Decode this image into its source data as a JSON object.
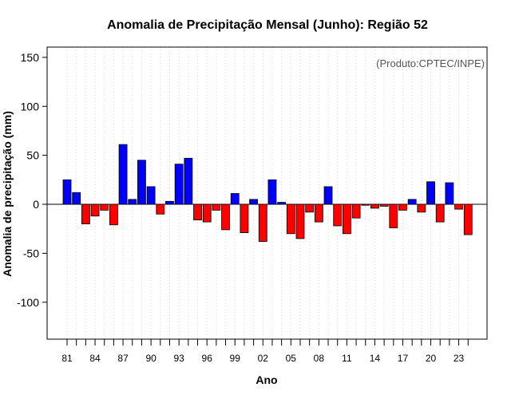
{
  "chart_data": {
    "type": "bar",
    "title": "Anomalia de Precipitação Mensal (Junho): Região 52",
    "xlabel": "Ano",
    "ylabel": "Anomalia de precipitação (mm)",
    "credit": "(Produto:CPTEC/INPE)",
    "ylim": [
      -140,
      160
    ],
    "yticks": [
      -100,
      -50,
      0,
      50,
      100,
      150
    ],
    "xtick_labels": [
      "81",
      "84",
      "87",
      "90",
      "93",
      "96",
      "99",
      "02",
      "05",
      "08",
      "11",
      "14",
      "17",
      "20",
      "23"
    ],
    "categories": [
      "1981",
      "1982",
      "1983",
      "1984",
      "1985",
      "1986",
      "1987",
      "1988",
      "1989",
      "1990",
      "1991",
      "1992",
      "1993",
      "1994",
      "1995",
      "1996",
      "1997",
      "1998",
      "1999",
      "2000",
      "2001",
      "2002",
      "2003",
      "2004",
      "2005",
      "2006",
      "2007",
      "2008",
      "2009",
      "2010",
      "2011",
      "2012",
      "2013",
      "2014",
      "2015",
      "2016",
      "2017",
      "2018",
      "2019",
      "2020",
      "2021",
      "2022",
      "2023",
      "2024"
    ],
    "values": [
      25,
      12,
      -20,
      -12,
      -6,
      -21,
      61,
      5,
      45,
      18,
      -10,
      3,
      41,
      47,
      -16,
      -18,
      -6,
      -26,
      11,
      -29,
      5,
      -38,
      25,
      2,
      -30,
      -35,
      -8,
      -18,
      18,
      -22,
      -30,
      -14,
      -1,
      -4,
      -2,
      -24,
      -6,
      5,
      -8,
      23,
      -18,
      22,
      -5,
      -31
    ],
    "colors": {
      "positive": "#0000ff",
      "negative": "#ff0000",
      "grid": "#d3d3d3",
      "axis": "#000000"
    }
  }
}
